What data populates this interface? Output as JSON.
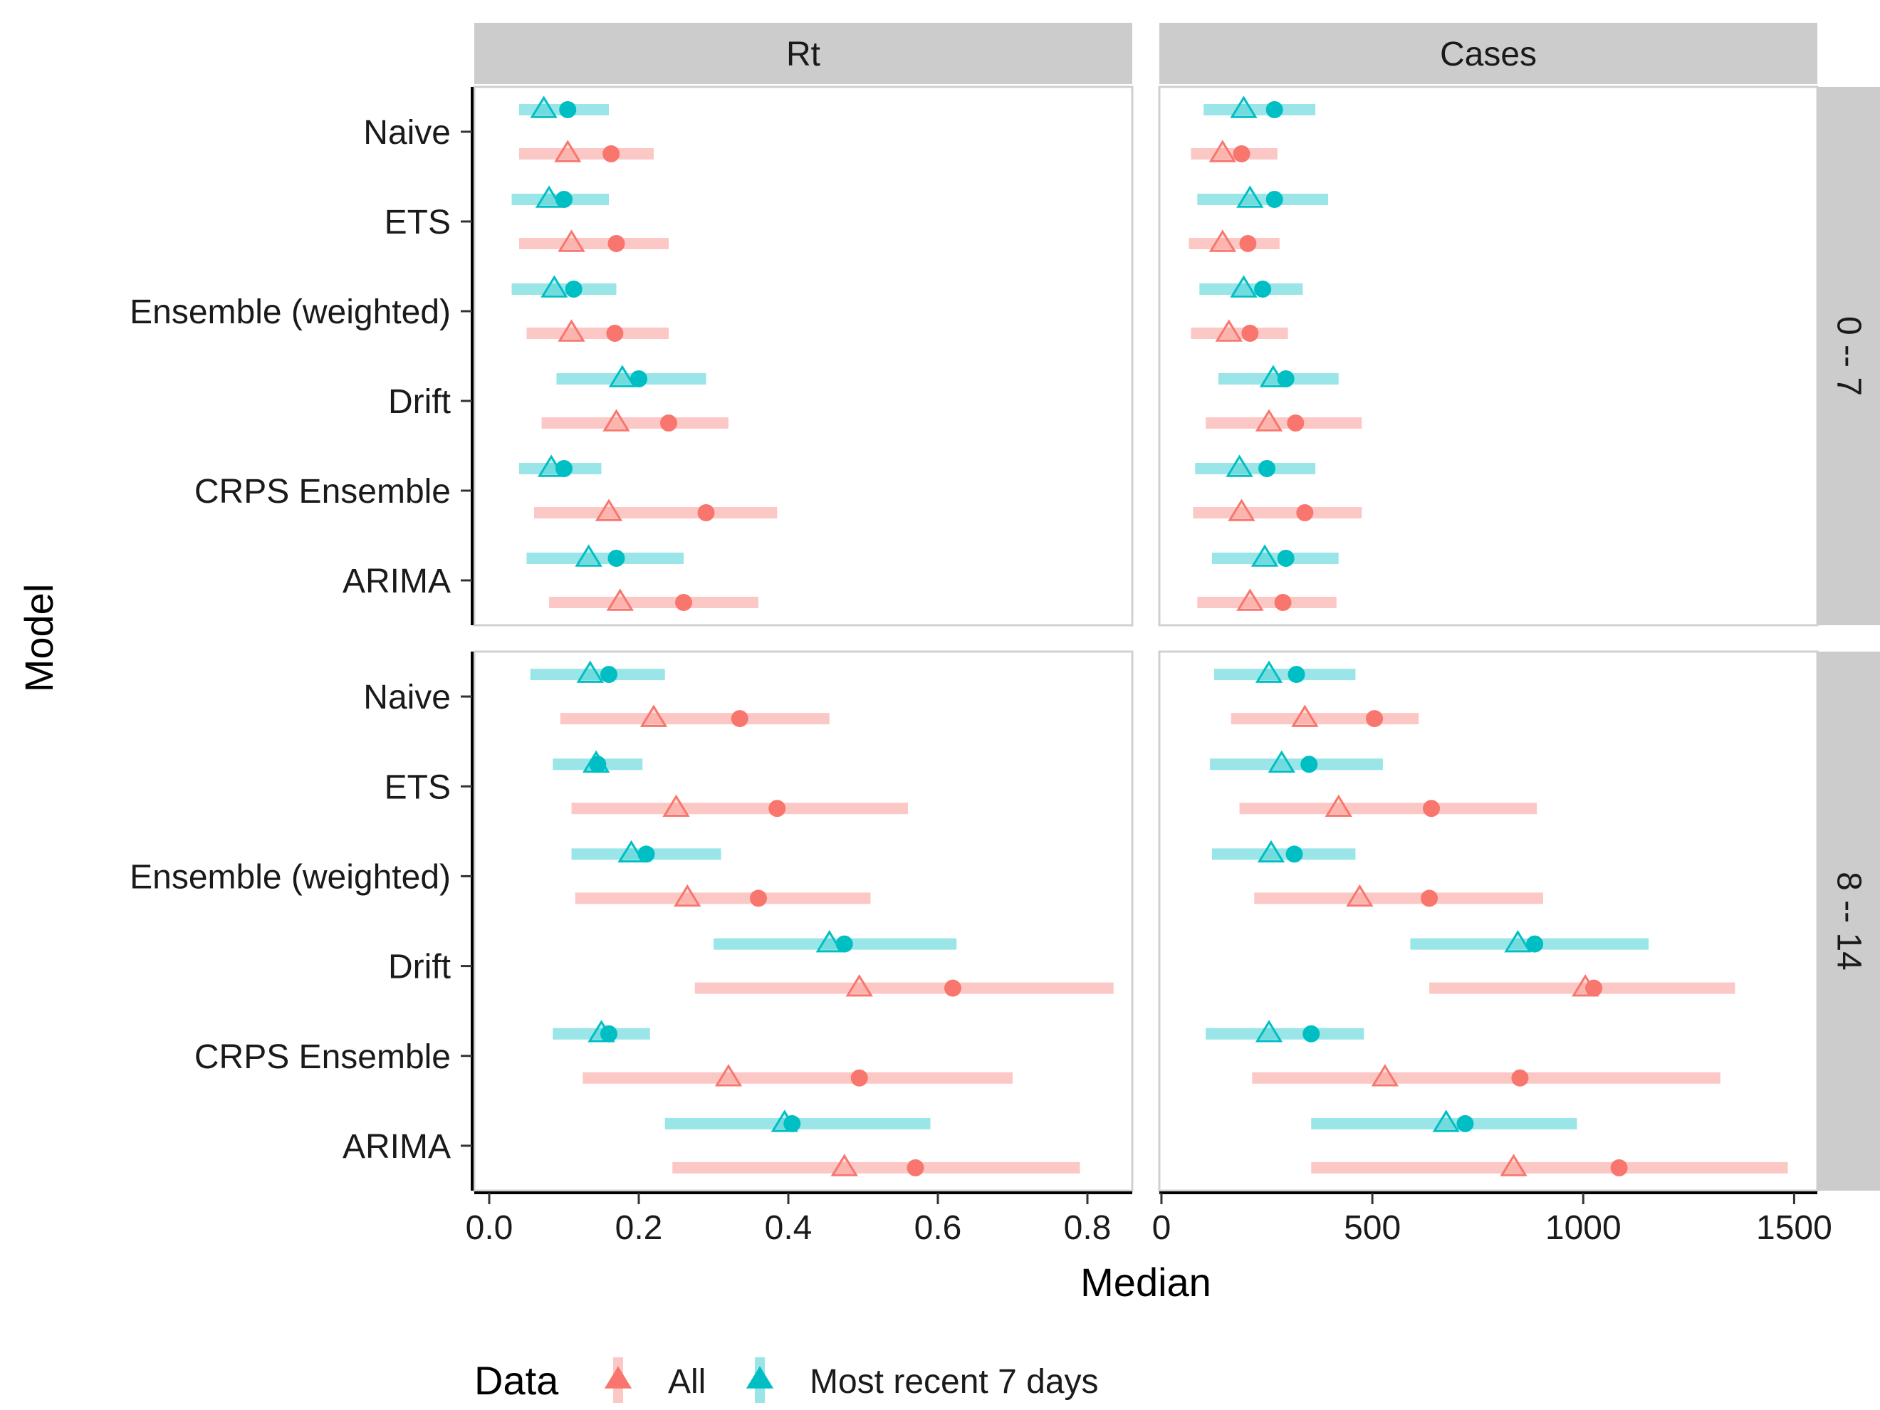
{
  "chart_data": {
    "type": "scatter",
    "subtype": "faceted-dot-range",
    "xlabel": "Median",
    "ylabel": "Model",
    "legend": {
      "title": "Data",
      "placement": "bottom",
      "entries": [
        {
          "key": "all",
          "label": "All",
          "color": "#F8766D"
        },
        {
          "key": "recent",
          "label": "Most recent 7 days",
          "color": "#00BFC4"
        }
      ]
    },
    "models": [
      "Naive",
      "ETS",
      "Ensemble (weighted)",
      "Drift",
      "CRPS Ensemble",
      "ARIMA"
    ],
    "columns": [
      {
        "label": "Rt",
        "xlim": [
          -0.02,
          0.86
        ],
        "ticks": [
          0.0,
          0.2,
          0.4,
          0.6,
          0.8
        ],
        "tick_labels": [
          "0.0",
          "0.2",
          "0.4",
          "0.6",
          "0.8"
        ]
      },
      {
        "label": "Cases",
        "xlim": [
          -5,
          1555
        ],
        "ticks": [
          0,
          500,
          1000,
          1500
        ],
        "tick_labels": [
          "0",
          "500",
          "1000",
          "1500"
        ]
      }
    ],
    "rows": [
      {
        "label": "0 -- 7"
      },
      {
        "label": "8 -- 14"
      }
    ],
    "marker_note": "triangle = mean, circle = median, bar = interval",
    "panels": [
      {
        "row": 0,
        "col": 0,
        "data": {
          "Naive": {
            "recent": {
              "lo": 0.04,
              "hi": 0.16,
              "tri": 0.073,
              "dot": 0.105
            },
            "all": {
              "lo": 0.04,
              "hi": 0.22,
              "tri": 0.105,
              "dot": 0.163
            }
          },
          "ETS": {
            "recent": {
              "lo": 0.03,
              "hi": 0.16,
              "tri": 0.08,
              "dot": 0.1
            },
            "all": {
              "lo": 0.04,
              "hi": 0.24,
              "tri": 0.11,
              "dot": 0.17
            }
          },
          "Ensemble (weighted)": {
            "recent": {
              "lo": 0.03,
              "hi": 0.17,
              "tri": 0.087,
              "dot": 0.113
            },
            "all": {
              "lo": 0.05,
              "hi": 0.24,
              "tri": 0.11,
              "dot": 0.168
            }
          },
          "Drift": {
            "recent": {
              "lo": 0.09,
              "hi": 0.29,
              "tri": 0.178,
              "dot": 0.2
            },
            "all": {
              "lo": 0.07,
              "hi": 0.32,
              "tri": 0.17,
              "dot": 0.24
            }
          },
          "CRPS Ensemble": {
            "recent": {
              "lo": 0.04,
              "hi": 0.15,
              "tri": 0.083,
              "dot": 0.1
            },
            "all": {
              "lo": 0.06,
              "hi": 0.385,
              "tri": 0.16,
              "dot": 0.29
            }
          },
          "ARIMA": {
            "recent": {
              "lo": 0.05,
              "hi": 0.26,
              "tri": 0.133,
              "dot": 0.17
            },
            "all": {
              "lo": 0.08,
              "hi": 0.36,
              "tri": 0.175,
              "dot": 0.26
            }
          }
        }
      },
      {
        "row": 0,
        "col": 1,
        "data": {
          "Naive": {
            "recent": {
              "lo": 100,
              "hi": 365,
              "tri": 195,
              "dot": 268
            },
            "all": {
              "lo": 70,
              "hi": 275,
              "tri": 145,
              "dot": 190
            }
          },
          "ETS": {
            "recent": {
              "lo": 85,
              "hi": 395,
              "tri": 210,
              "dot": 268
            },
            "all": {
              "lo": 65,
              "hi": 280,
              "tri": 145,
              "dot": 205
            }
          },
          "Ensemble (weighted)": {
            "recent": {
              "lo": 90,
              "hi": 335,
              "tri": 195,
              "dot": 240
            },
            "all": {
              "lo": 70,
              "hi": 300,
              "tri": 160,
              "dot": 210
            }
          },
          "Drift": {
            "recent": {
              "lo": 135,
              "hi": 420,
              "tri": 265,
              "dot": 295
            },
            "all": {
              "lo": 105,
              "hi": 475,
              "tri": 255,
              "dot": 318
            }
          },
          "CRPS Ensemble": {
            "recent": {
              "lo": 80,
              "hi": 365,
              "tri": 185,
              "dot": 250
            },
            "all": {
              "lo": 75,
              "hi": 475,
              "tri": 190,
              "dot": 340
            }
          },
          "ARIMA": {
            "recent": {
              "lo": 120,
              "hi": 420,
              "tri": 245,
              "dot": 295
            },
            "all": {
              "lo": 85,
              "hi": 415,
              "tri": 210,
              "dot": 288
            }
          }
        }
      },
      {
        "row": 1,
        "col": 0,
        "data": {
          "Naive": {
            "recent": {
              "lo": 0.055,
              "hi": 0.235,
              "tri": 0.135,
              "dot": 0.16
            },
            "all": {
              "lo": 0.095,
              "hi": 0.455,
              "tri": 0.22,
              "dot": 0.335
            }
          },
          "ETS": {
            "recent": {
              "lo": 0.085,
              "hi": 0.205,
              "tri": 0.143,
              "dot": 0.145
            },
            "all": {
              "lo": 0.11,
              "hi": 0.56,
              "tri": 0.25,
              "dot": 0.385
            }
          },
          "Ensemble (weighted)": {
            "recent": {
              "lo": 0.11,
              "hi": 0.31,
              "tri": 0.19,
              "dot": 0.21
            },
            "all": {
              "lo": 0.115,
              "hi": 0.51,
              "tri": 0.265,
              "dot": 0.36
            }
          },
          "Drift": {
            "recent": {
              "lo": 0.3,
              "hi": 0.625,
              "tri": 0.455,
              "dot": 0.475
            },
            "all": {
              "lo": 0.275,
              "hi": 0.835,
              "tri": 0.495,
              "dot": 0.62
            }
          },
          "CRPS Ensemble": {
            "recent": {
              "lo": 0.085,
              "hi": 0.215,
              "tri": 0.15,
              "dot": 0.16
            },
            "all": {
              "lo": 0.125,
              "hi": 0.7,
              "tri": 0.32,
              "dot": 0.495
            }
          },
          "ARIMA": {
            "recent": {
              "lo": 0.235,
              "hi": 0.59,
              "tri": 0.395,
              "dot": 0.405
            },
            "all": {
              "lo": 0.245,
              "hi": 0.79,
              "tri": 0.475,
              "dot": 0.57
            }
          }
        }
      },
      {
        "row": 1,
        "col": 1,
        "data": {
          "Naive": {
            "recent": {
              "lo": 125,
              "hi": 460,
              "tri": 255,
              "dot": 320
            },
            "all": {
              "lo": 165,
              "hi": 610,
              "tri": 340,
              "dot": 505
            }
          },
          "ETS": {
            "recent": {
              "lo": 115,
              "hi": 525,
              "tri": 285,
              "dot": 350
            },
            "all": {
              "lo": 185,
              "hi": 890,
              "tri": 420,
              "dot": 640
            }
          },
          "Ensemble (weighted)": {
            "recent": {
              "lo": 120,
              "hi": 460,
              "tri": 260,
              "dot": 315
            },
            "all": {
              "lo": 220,
              "hi": 905,
              "tri": 470,
              "dot": 635
            }
          },
          "Drift": {
            "recent": {
              "lo": 590,
              "hi": 1155,
              "tri": 845,
              "dot": 885
            },
            "all": {
              "lo": 635,
              "hi": 1360,
              "tri": 1005,
              "dot": 1025
            }
          },
          "CRPS Ensemble": {
            "recent": {
              "lo": 105,
              "hi": 480,
              "tri": 255,
              "dot": 355
            },
            "all": {
              "lo": 215,
              "hi": 1325,
              "tri": 530,
              "dot": 850
            }
          },
          "ARIMA": {
            "recent": {
              "lo": 355,
              "hi": 985,
              "tri": 675,
              "dot": 720
            },
            "all": {
              "lo": 355,
              "hi": 1485,
              "tri": 835,
              "dot": 1085
            }
          }
        }
      }
    ]
  }
}
